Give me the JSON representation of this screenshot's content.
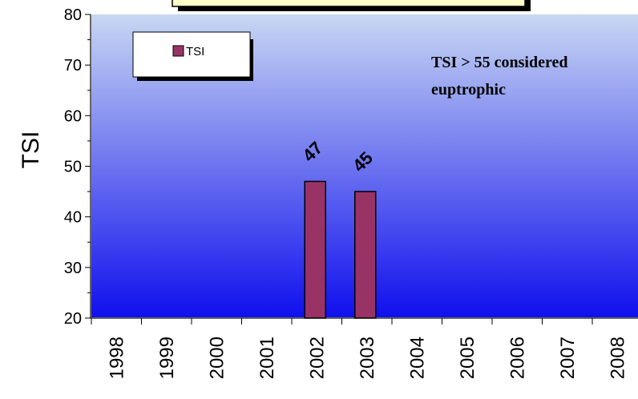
{
  "chart_data": {
    "type": "bar",
    "categories": [
      "1998",
      "1999",
      "2000",
      "2001",
      "2002",
      "2003",
      "2004",
      "2005",
      "2006",
      "2007",
      "2008"
    ],
    "series": [
      {
        "name": "TSI",
        "values": [
          null,
          null,
          null,
          null,
          47,
          45,
          null,
          null,
          null,
          null,
          null
        ]
      }
    ],
    "data_labels": [
      "",
      "",
      "",
      "",
      "47",
      "45",
      "",
      "",
      "",
      "",
      ""
    ],
    "ylabel": "TSI",
    "ylim": [
      20,
      80
    ],
    "yticks": [
      "20",
      "30",
      "40",
      "50",
      "60",
      "70",
      "80"
    ],
    "legend": {
      "label": "TSI",
      "position": "top-left"
    },
    "annotation": {
      "line1": "TSI > 55 considered",
      "line2": "euptrophic"
    },
    "colors": {
      "bar": "#993366",
      "bar_stroke": "#000000",
      "plot_top": "#c8d7f2",
      "plot_bottom": "#1010ee",
      "title_box": "#ffffcc"
    },
    "grid": false
  }
}
